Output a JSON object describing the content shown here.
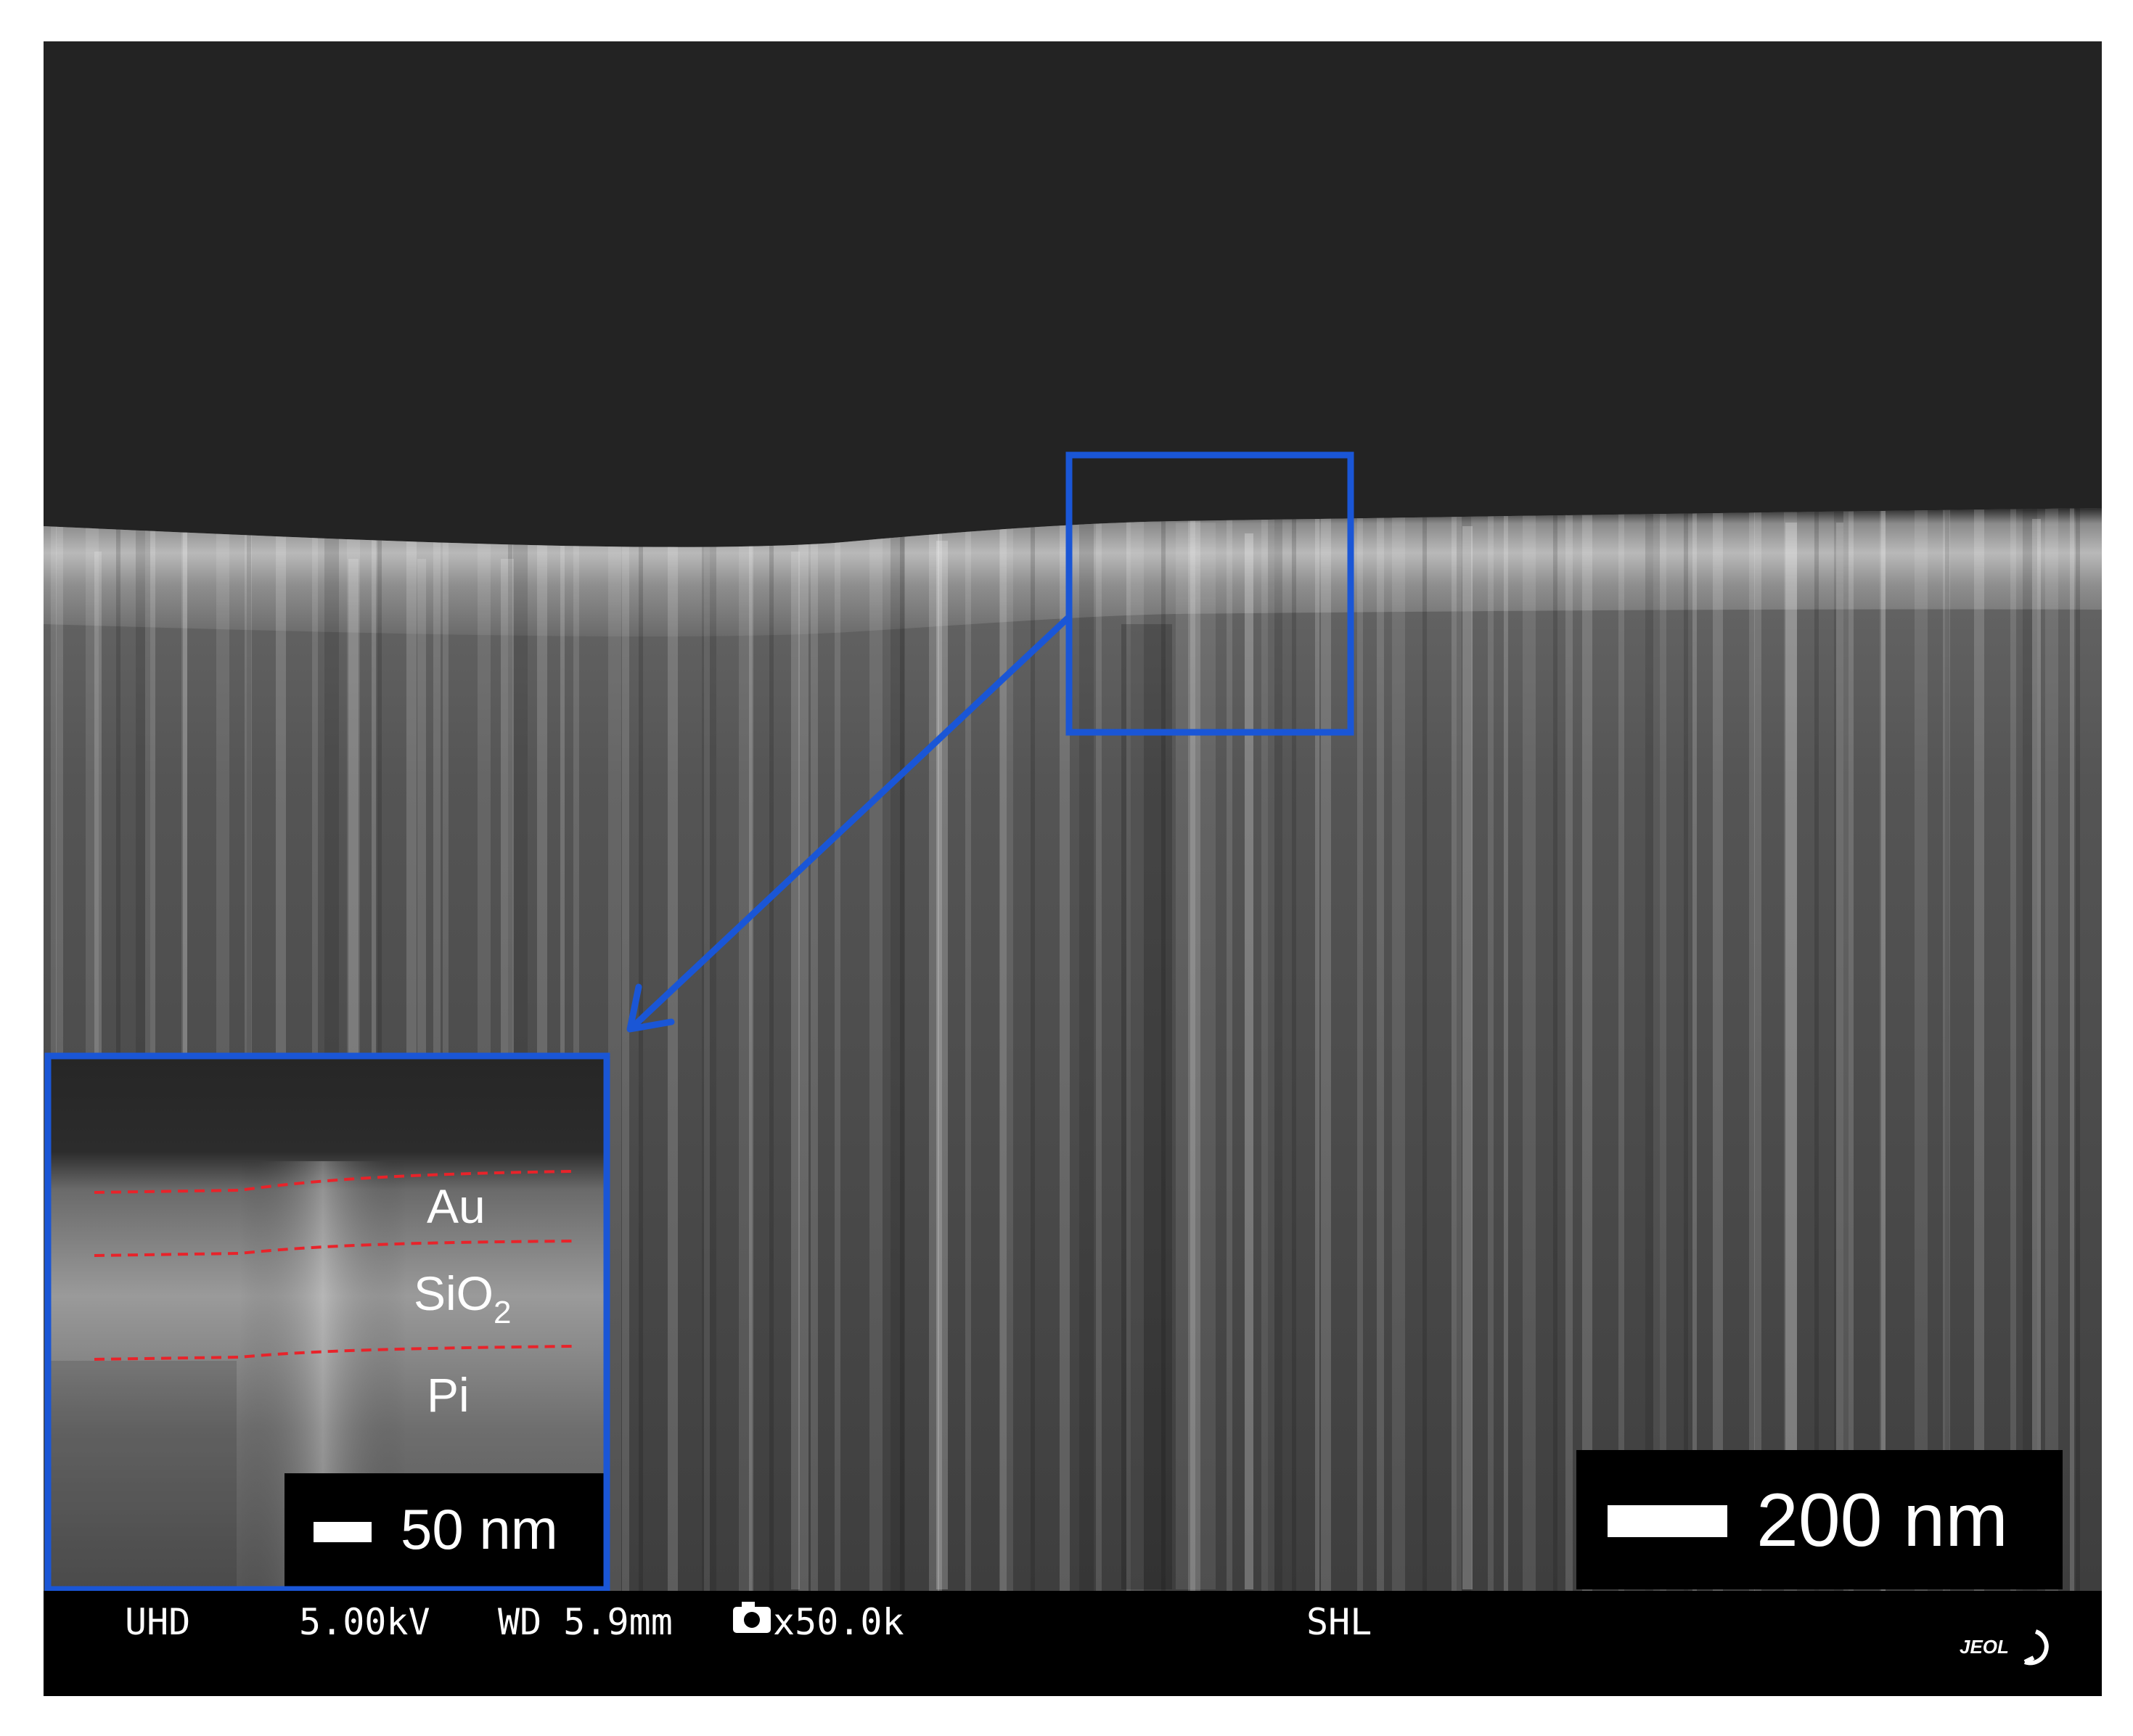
{
  "layer_labels": {
    "top": "Au",
    "middle_base": "SiO",
    "middle_subscript": "2",
    "bottom": "Pi"
  },
  "inset_scale_bar": {
    "label": "50 nm"
  },
  "main_scale_bar": {
    "label": "200 nm"
  },
  "info_bar": {
    "mode": "UHD",
    "voltage": "5.00kV",
    "working_distance": "WD 5.9mm",
    "magnification": "x50.0k",
    "detector": "SHL",
    "brand": "JEOL"
  },
  "colors": {
    "highlight_box": "#1a56d6",
    "layer_boundary": "#e8232a",
    "background_vacuum": "#232323",
    "info_bar": "#000000"
  }
}
